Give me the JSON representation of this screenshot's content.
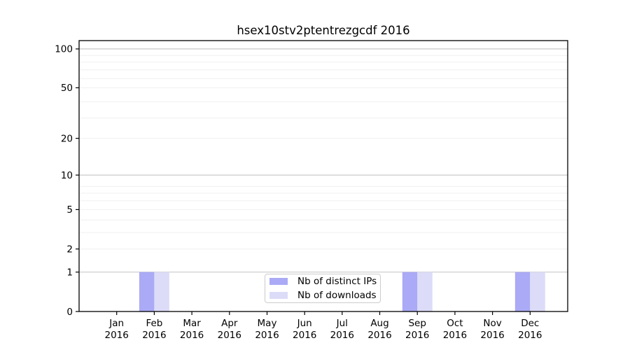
{
  "figure": {
    "background": "#ffffff"
  },
  "chart_data": {
    "type": "bar",
    "title": "hsex10stv2ptentrezgcdf 2016",
    "categories": [
      {
        "month": "Jan",
        "year": "2016"
      },
      {
        "month": "Feb",
        "year": "2016"
      },
      {
        "month": "Mar",
        "year": "2016"
      },
      {
        "month": "Apr",
        "year": "2016"
      },
      {
        "month": "May",
        "year": "2016"
      },
      {
        "month": "Jun",
        "year": "2016"
      },
      {
        "month": "Jul",
        "year": "2016"
      },
      {
        "month": "Aug",
        "year": "2016"
      },
      {
        "month": "Sep",
        "year": "2016"
      },
      {
        "month": "Oct",
        "year": "2016"
      },
      {
        "month": "Nov",
        "year": "2016"
      },
      {
        "month": "Dec",
        "year": "2016"
      }
    ],
    "series": [
      {
        "name": "Nb of distinct IPs",
        "color": "#aaaaf6",
        "values": [
          0,
          1,
          0,
          0,
          0,
          0,
          0,
          0,
          1,
          0,
          0,
          1
        ]
      },
      {
        "name": "Nb of downloads",
        "color": "#dcdcf8",
        "values": [
          0,
          1,
          0,
          0,
          0,
          0,
          0,
          0,
          1,
          0,
          0,
          1
        ]
      }
    ],
    "y_axis": {
      "ticks": [
        0,
        1,
        2,
        5,
        10,
        20,
        50,
        100
      ],
      "scale": "log1p",
      "max": 115
    },
    "x_axis": {
      "tick_label_lines": 2
    },
    "grid": {
      "major_at": [
        1,
        10,
        100
      ],
      "minor_at": [
        2,
        3,
        4,
        5,
        6,
        7,
        8,
        20,
        29,
        39,
        50,
        59,
        69,
        79,
        89
      ],
      "major_color": "#c9c9c9",
      "minor_color": "#f0f0f0"
    },
    "legend": {
      "position": "lower center",
      "items": [
        "Nb of distinct IPs",
        "Nb of downloads"
      ]
    }
  }
}
